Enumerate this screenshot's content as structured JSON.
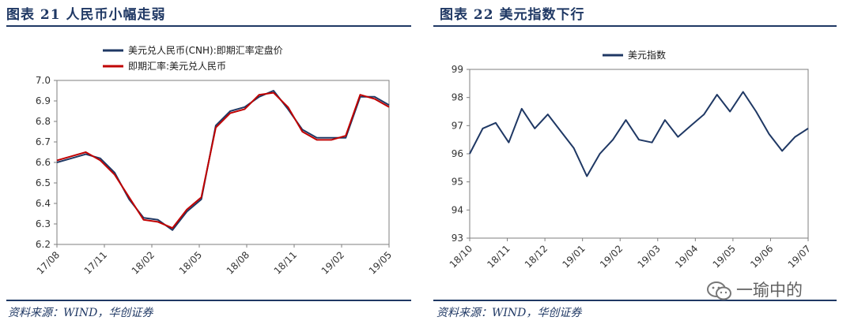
{
  "left_panel": {
    "title": "图表 21   人民币小幅走弱",
    "source": "资料来源：WIND，华创证券"
  },
  "right_panel": {
    "title": "图表 22   美元指数下行",
    "source": "资料来源：WIND，华创证券"
  },
  "watermark": {
    "text": "一瑜中的",
    "icon": "wechat-icon"
  },
  "colors": {
    "brand": "#1f3864",
    "series_navy": "#1f3864",
    "series_red": "#c00000"
  },
  "chart_data": [
    {
      "type": "line",
      "legend_position": "top-left",
      "grid": false,
      "ylim": [
        6.2,
        7.0
      ],
      "yticks": [
        "6.2",
        "6.3",
        "6.4",
        "6.5",
        "6.6",
        "6.7",
        "6.8",
        "6.9",
        "7.0"
      ],
      "xticks": [
        "17/08",
        "17/11",
        "18/02",
        "18/05",
        "18/08",
        "18/11",
        "19/02",
        "19/05"
      ],
      "x": [
        "17/08",
        "17/09",
        "17/10",
        "17/11",
        "17/12",
        "18/01",
        "18/02",
        "18/03",
        "18/04",
        "18/05",
        "18/06",
        "18/07",
        "18/08",
        "18/09",
        "18/10",
        "18/11",
        "18/12",
        "19/01",
        "19/02",
        "19/03",
        "19/04",
        "19/05",
        "19/06",
        "19/07"
      ],
      "series": [
        {
          "name": "美元兑人民币(CNH):即期汇率定盘价",
          "color": "#1f3864",
          "values": [
            6.6,
            6.62,
            6.64,
            6.62,
            6.55,
            6.42,
            6.33,
            6.32,
            6.27,
            6.36,
            6.42,
            6.78,
            6.85,
            6.87,
            6.92,
            6.95,
            6.86,
            6.76,
            6.72,
            6.72,
            6.72,
            6.92,
            6.92,
            6.88
          ]
        },
        {
          "name": "即期汇率:美元兑人民币",
          "color": "#c00000",
          "values": [
            6.61,
            6.63,
            6.65,
            6.61,
            6.54,
            6.43,
            6.32,
            6.31,
            6.28,
            6.37,
            6.43,
            6.77,
            6.84,
            6.86,
            6.93,
            6.94,
            6.87,
            6.75,
            6.71,
            6.71,
            6.73,
            6.93,
            6.91,
            6.87
          ]
        }
      ]
    },
    {
      "type": "line",
      "legend_position": "top-left",
      "grid": false,
      "ylim": [
        93,
        99
      ],
      "yticks": [
        "93",
        "94",
        "95",
        "96",
        "97",
        "98",
        "99"
      ],
      "xticks": [
        "18/10",
        "18/11",
        "18/12",
        "19/01",
        "19/02",
        "19/03",
        "19/04",
        "19/05",
        "19/06",
        "19/07"
      ],
      "x": [
        "18/10",
        "18/10",
        "18/11",
        "18/11",
        "18/11",
        "18/12",
        "18/12",
        "18/12",
        "19/01",
        "19/01",
        "19/01",
        "19/02",
        "19/02",
        "19/02",
        "19/03",
        "19/03",
        "19/03",
        "19/04",
        "19/04",
        "19/04",
        "19/05",
        "19/05",
        "19/05",
        "19/06",
        "19/06",
        "19/06",
        "19/07"
      ],
      "series": [
        {
          "name": "美元指数",
          "color": "#1f3864",
          "values": [
            96.0,
            96.9,
            97.1,
            96.4,
            97.6,
            96.9,
            97.4,
            96.8,
            96.2,
            95.2,
            96.0,
            96.5,
            97.2,
            96.5,
            96.4,
            97.2,
            96.6,
            97.0,
            97.4,
            98.1,
            97.5,
            98.2,
            97.5,
            96.7,
            96.1,
            96.6,
            96.9
          ]
        }
      ]
    }
  ]
}
